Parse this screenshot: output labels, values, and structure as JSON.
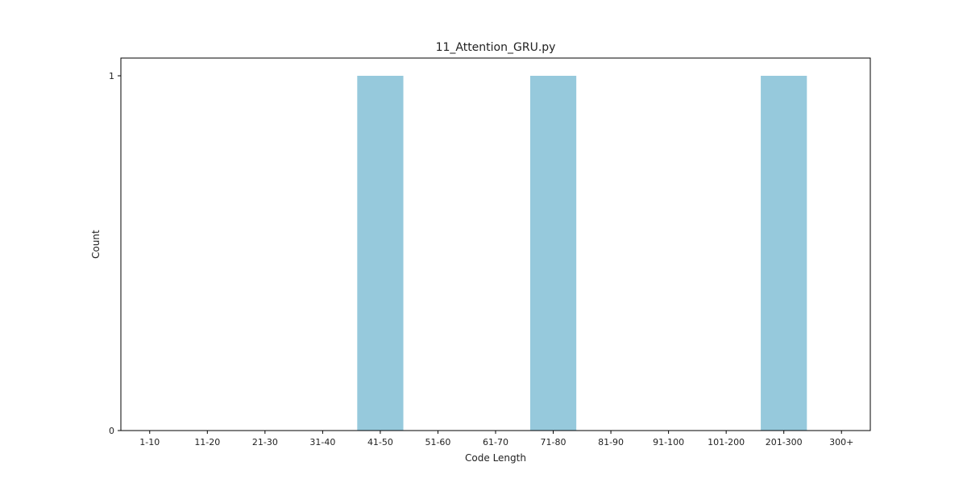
{
  "chart_data": {
    "type": "bar",
    "title": "11_Attention_GRU.py",
    "xlabel": "Code Length",
    "ylabel": "Count",
    "categories": [
      "1-10",
      "11-20",
      "21-30",
      "31-40",
      "41-50",
      "51-60",
      "61-70",
      "71-80",
      "81-90",
      "91-100",
      "101-200",
      "201-300",
      "300+"
    ],
    "values": [
      0,
      0,
      0,
      0,
      1,
      0,
      0,
      1,
      0,
      0,
      0,
      1,
      0
    ],
    "ylim": [
      0,
      1.05
    ],
    "yticks": [
      0,
      1
    ],
    "grid": false,
    "legend": "none",
    "bar_color": "#96c9dc"
  }
}
